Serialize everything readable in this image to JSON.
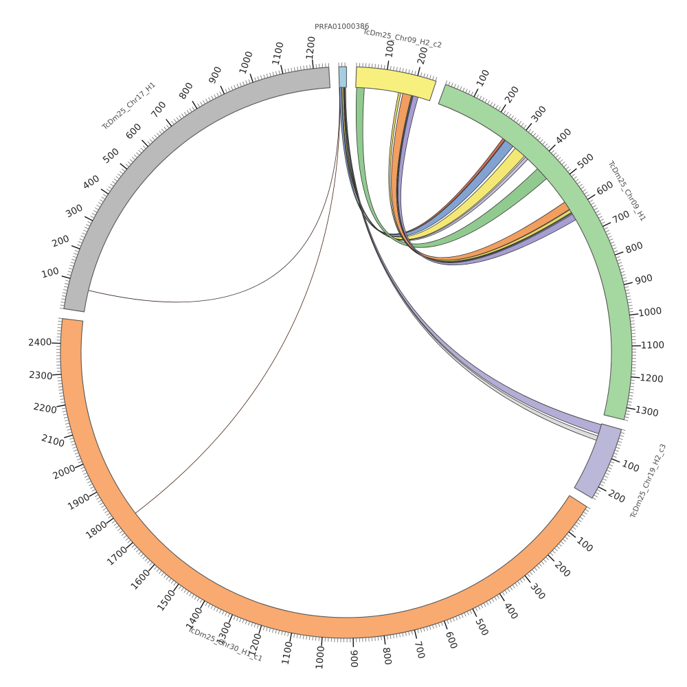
{
  "figure": {
    "background": "#ffffff",
    "kind": "circos-synteny-plot"
  },
  "chart_data": {
    "type": "chord",
    "layout_hint": "circular ideogram with outer tick ruler (minor=10, major=100 units), ribbons through center",
    "tick_minor_interval": 10,
    "tick_major_interval": 100,
    "segments": [
      {
        "id": "PRFA01000386",
        "label": "PRFA01000386",
        "length": 25,
        "fill": "#a6cee3",
        "label_pos": 12,
        "label_off": 58,
        "major_ticks": []
      },
      {
        "id": "TcDm25_Chr09_H2_c2",
        "label": "TcDm25_Chr09_H2_c2",
        "length": 262,
        "fill": "#f8f07e",
        "label_pos": 130,
        "label_off": 48,
        "major_ticks": [
          100,
          200
        ]
      },
      {
        "id": "TcDm25_Chr09_H1",
        "label": "TcDm25_Chr09_H1",
        "length": 1340,
        "fill": "#a5d7a0",
        "label_pos": 640,
        "label_off": 55,
        "major_ticks": [
          100,
          200,
          300,
          400,
          500,
          600,
          700,
          800,
          900,
          1000,
          1100,
          1200,
          1300
        ]
      },
      {
        "id": "TcDm25_Chr19_H2_c3",
        "label": "TcDm25_Chr19_H2_c3",
        "length": 242,
        "fill": "#bab7d8",
        "label_pos": 120,
        "label_off": 62,
        "major_ticks": [
          100,
          200
        ]
      },
      {
        "id": "TcDm25_Chr30_H1_c1",
        "label": "TcDm25_Chr30_H1_c1",
        "length": 2480,
        "fill": "#f9aa70",
        "label_pos": 1285,
        "label_off": 44,
        "major_ticks": [
          100,
          200,
          300,
          400,
          500,
          600,
          700,
          800,
          900,
          1000,
          1100,
          1200,
          1300,
          1400,
          1500,
          1600,
          1700,
          1800,
          1900,
          2000,
          2100,
          2200,
          2300,
          2400
        ]
      },
      {
        "id": "TcDm25_Chr17_H1",
        "label": "TcDm25_Chr17_H1",
        "length": 1250,
        "fill": "#bababa",
        "label_pos": 640,
        "label_off": 62,
        "major_ticks": [
          100,
          200,
          300,
          400,
          500,
          600,
          700,
          800,
          900,
          1000,
          1100,
          1200
        ]
      }
    ],
    "links": [
      {
        "source": "PRFA01000386",
        "s1": 8,
        "s2": 9.5,
        "target": "TcDm25_Chr09_H1",
        "t1": 255,
        "t2": 264,
        "fill": "#cf6a50",
        "kind": "ribbon"
      },
      {
        "source": "PRFA01000386",
        "s1": 0,
        "s2": 8,
        "target": "TcDm25_Chr09_H1",
        "t1": 266,
        "t2": 300,
        "fill": "#7d9fd0",
        "kind": "ribbon"
      },
      {
        "source": "PRFA01000386",
        "s1": 9.5,
        "s2": 14.5,
        "target": "TcDm25_Chr09_H1",
        "t1": 310,
        "t2": 352,
        "fill": "#f3e76e",
        "kind": "ribbon"
      },
      {
        "source": "PRFA01000386",
        "s1": 14.5,
        "s2": 16,
        "target": "TcDm25_Chr09_H1",
        "t1": 357,
        "t2": 368,
        "fill": "#c6c0da",
        "kind": "ribbon"
      },
      {
        "source": "TcDm25_Chr09_H2_c2",
        "s1": 3,
        "s2": 30,
        "target": "TcDm25_Chr09_H1",
        "t1": 415,
        "t2": 462,
        "fill": "#8cc88a",
        "kind": "ribbon"
      },
      {
        "source": "TcDm25_Chr09_H2_c2",
        "s1": 165,
        "s2": 196,
        "target": "TcDm25_Chr09_H1",
        "t1": 565,
        "t2": 595,
        "fill": "#f09a58",
        "kind": "ribbon"
      },
      {
        "source": "TcDm25_Chr09_H2_c2",
        "s1": 150,
        "s2": 158,
        "target": "TcDm25_Chr09_H1",
        "t1": 597,
        "t2": 608,
        "fill": "#e4d55e",
        "kind": "ribbon"
      },
      {
        "source": "TcDm25_Chr09_H2_c2",
        "s1": 197,
        "s2": 200,
        "target": "TcDm25_Chr09_H1",
        "t1": 609,
        "t2": 612,
        "fill": "#7b9cd0",
        "kind": "ribbon"
      },
      {
        "source": "TcDm25_Chr09_H2_c2",
        "s1": 202,
        "s2": 220,
        "target": "TcDm25_Chr09_H1",
        "t1": 615,
        "t2": 638,
        "fill": "#a29ad0",
        "kind": "ribbon"
      },
      {
        "source": "PRFA01000386",
        "s1": 19,
        "s2": 22,
        "target": "TcDm25_Chr19_H2_c3",
        "t1": 3,
        "t2": 36,
        "fill": "#b1aad4",
        "kind": "ribbon"
      },
      {
        "source": "PRFA01000386",
        "s1": 17,
        "s2": 19,
        "target": "TcDm25_Chr19_H2_c3",
        "t1": 44,
        "t2": 60,
        "fill": "#dcdcdc",
        "kind": "ribbon"
      },
      {
        "source": "PRFA01000386",
        "s1": 0.5,
        "s2": 0.5,
        "target": "TcDm25_Chr17_H1",
        "t1": 76,
        "t2": 76,
        "stroke": "#3a2a24",
        "kind": "line"
      },
      {
        "source": "PRFA01000386",
        "s1": 1.5,
        "s2": 1.5,
        "target": "TcDm25_Chr30_H1_c1",
        "t1": 1770,
        "t2": 1770,
        "stroke": "#4a2418",
        "kind": "line"
      }
    ],
    "style": {
      "band_stroke": "#555555",
      "ribbon_stroke": "#333333",
      "minor_tick_color": "#787878",
      "major_tick_color": "#111111",
      "number_color": "#222222",
      "name_color": "#4a4a4a"
    }
  }
}
